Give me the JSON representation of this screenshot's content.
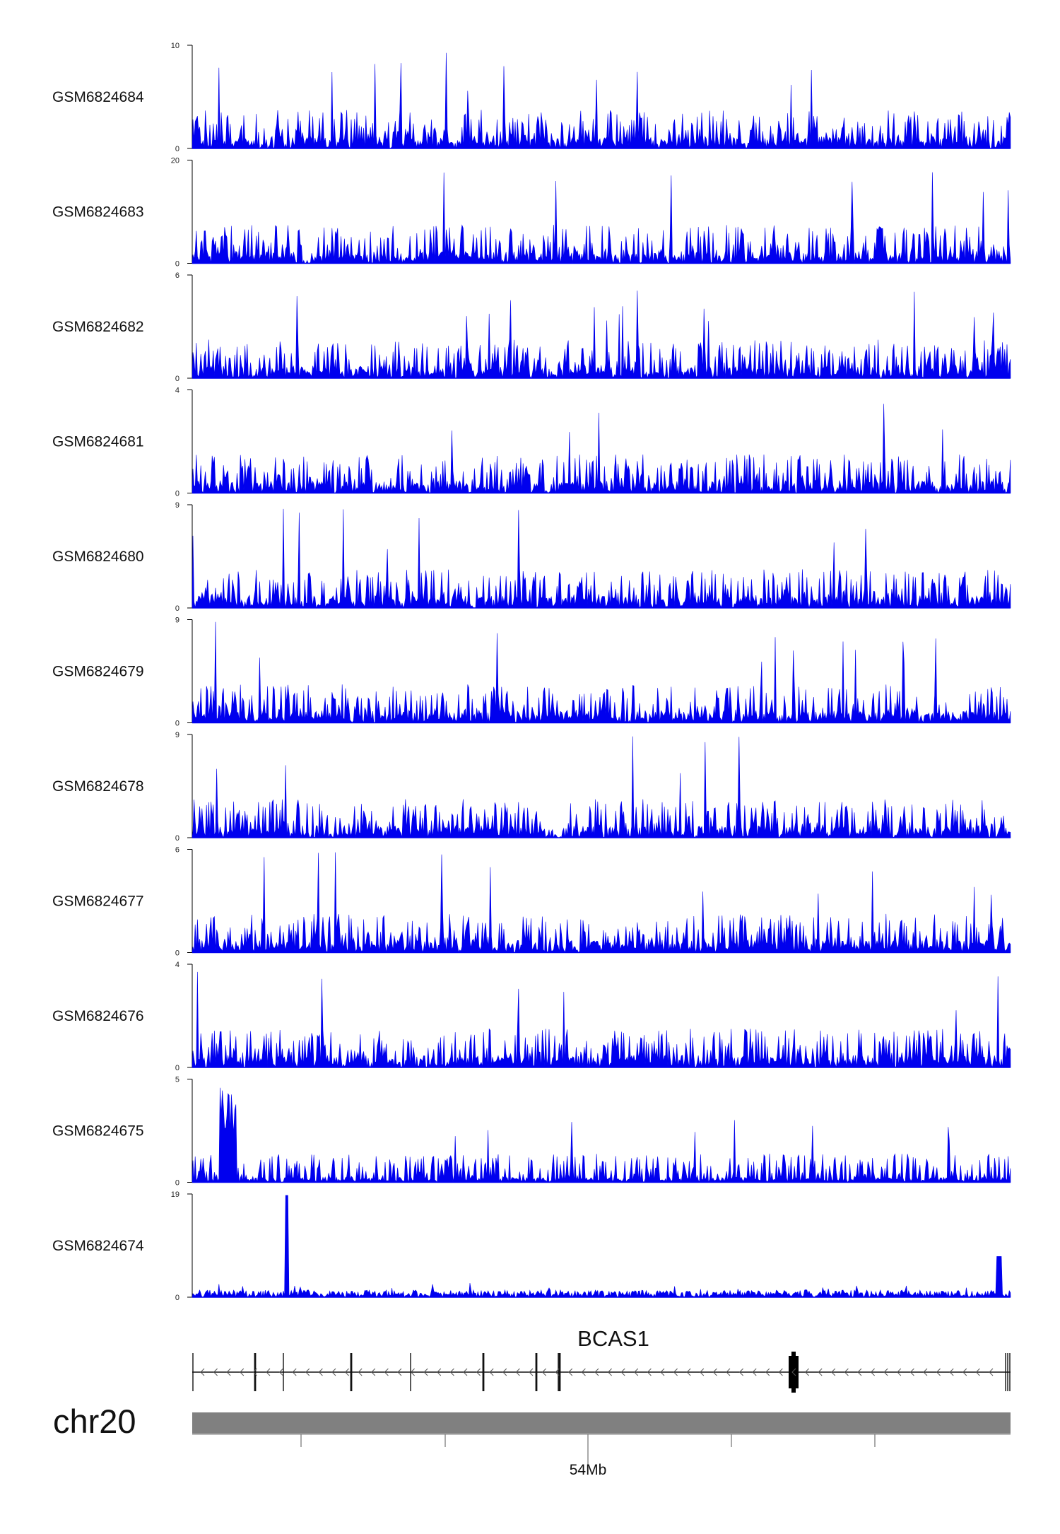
{
  "chart_data": {
    "type": "area",
    "tracks": [
      {
        "name": "GSM6824684",
        "ylim": [
          0,
          10
        ],
        "ytick_labels": [
          "10",
          "0"
        ]
      },
      {
        "name": "GSM6824683",
        "ylim": [
          0,
          20
        ],
        "ytick_labels": [
          "20",
          "0"
        ]
      },
      {
        "name": "GSM6824682",
        "ylim": [
          0,
          6
        ],
        "ytick_labels": [
          "6",
          "0"
        ]
      },
      {
        "name": "GSM6824681",
        "ylim": [
          0,
          4
        ],
        "ytick_labels": [
          "4",
          "0"
        ]
      },
      {
        "name": "GSM6824680",
        "ylim": [
          0,
          9
        ],
        "ytick_labels": [
          "9",
          "0"
        ]
      },
      {
        "name": "GSM6824679",
        "ylim": [
          0,
          9
        ],
        "ytick_labels": [
          "9",
          "0"
        ]
      },
      {
        "name": "GSM6824678",
        "ylim": [
          0,
          9
        ],
        "ytick_labels": [
          "9",
          "0"
        ]
      },
      {
        "name": "GSM6824677",
        "ylim": [
          0,
          6
        ],
        "ytick_labels": [
          "6",
          "0"
        ]
      },
      {
        "name": "GSM6824676",
        "ylim": [
          0,
          4
        ],
        "ytick_labels": [
          "4",
          "0"
        ]
      },
      {
        "name": "GSM6824675",
        "ylim": [
          0,
          5
        ],
        "ytick_labels": [
          "5",
          "0"
        ]
      },
      {
        "name": "GSM6824674",
        "ylim": [
          0,
          19
        ],
        "ytick_labels": [
          "19",
          "0"
        ]
      }
    ],
    "gene": {
      "name": "BCAS1",
      "strand": "-"
    },
    "chromosome": "chr20",
    "x_axis": {
      "tick_label": "54Mb"
    },
    "colors": {
      "signal": "#0000ee",
      "ideogram": "#808080",
      "axis": "#000000"
    }
  }
}
